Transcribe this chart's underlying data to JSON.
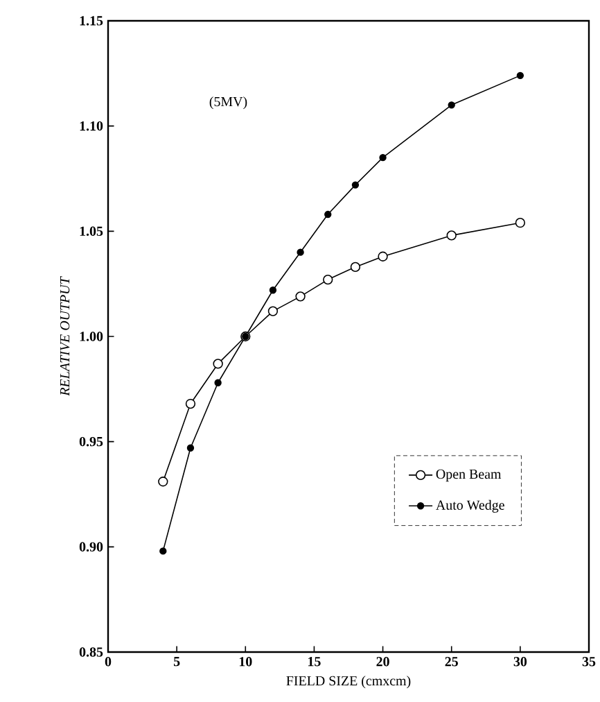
{
  "chart_data": {
    "type": "line",
    "xlabel": "FIELD SIZE (cmxcm)",
    "ylabel": "RELATIVE OUTPUT",
    "annotations": [
      "(5MV)"
    ],
    "x": [
      4,
      6,
      8,
      10,
      12,
      14,
      16,
      18,
      20,
      25,
      30
    ],
    "series": [
      {
        "name": "Open Beam",
        "color": "#000000",
        "values": [
          0.931,
          0.968,
          0.987,
          1.0,
          1.012,
          1.019,
          1.027,
          1.033,
          1.038,
          1.048,
          1.054
        ]
      },
      {
        "name": "Auto Wedge",
        "color": "#000000",
        "values": [
          0.898,
          0.947,
          0.978,
          1.0,
          1.022,
          1.04,
          1.058,
          1.072,
          1.085,
          1.11,
          1.124
        ]
      }
    ],
    "xlim": [
      0,
      35
    ],
    "xticks": [
      0,
      5,
      10,
      15,
      20,
      25,
      30,
      35
    ],
    "ylim": [
      0.85,
      1.15
    ],
    "yticks": [
      {
        "value": 0.85,
        "label": "0.85"
      },
      {
        "value": 0.9,
        "label": "0.90"
      },
      {
        "value": 0.95,
        "label": "0.95"
      },
      {
        "value": 1.0,
        "label": "1.00"
      },
      {
        "value": 1.05,
        "label": "1.05"
      },
      {
        "value": 1.1,
        "label": "1.10"
      },
      {
        "value": 1.15,
        "label": "1.15"
      }
    ],
    "grid": false,
    "legend": "bottom right",
    "marker": "circle",
    "line_style": "solid"
  }
}
